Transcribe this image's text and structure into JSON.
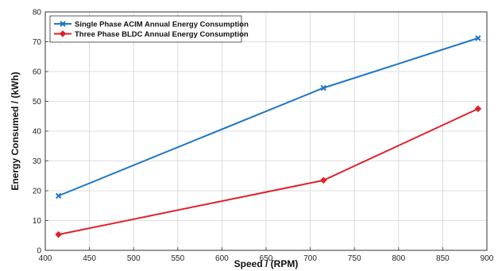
{
  "chart_data": {
    "type": "line",
    "xlabel": "Speed / (RPM)",
    "ylabel": "Energy Consumed / (kWh)",
    "xlim": [
      400,
      900
    ],
    "ylim": [
      0,
      80
    ],
    "x_ticks": [
      400,
      450,
      500,
      550,
      600,
      650,
      700,
      750,
      800,
      850,
      900
    ],
    "y_ticks": [
      0,
      10,
      20,
      30,
      40,
      50,
      60,
      70,
      80
    ],
    "grid": true,
    "legend_position": "top-left",
    "series": [
      {
        "name": "Single Phase ACIM Annual Energy Consumption",
        "color": "#1f77c4",
        "marker": "x",
        "x": [
          415,
          715,
          890
        ],
        "y": [
          18.3,
          54.5,
          71.2
        ]
      },
      {
        "name": "Three Phase BLDC Annual Energy Consumption",
        "color": "#e0202a",
        "marker": "diamond",
        "x": [
          415,
          715,
          890
        ],
        "y": [
          5.3,
          23.5,
          47.5
        ]
      }
    ]
  }
}
